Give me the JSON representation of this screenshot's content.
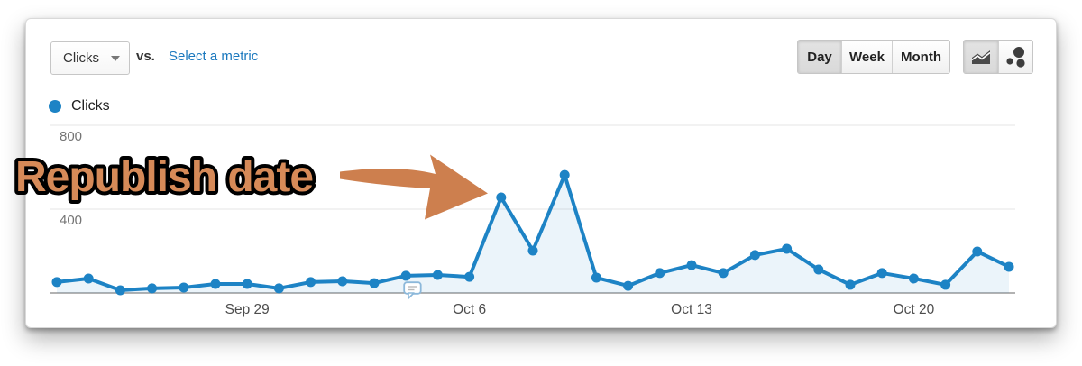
{
  "header": {
    "metric_selector": {
      "label": "Clicks"
    },
    "vs_label": "vs.",
    "select_metric_label": "Select a metric",
    "granularity": {
      "options": [
        "Day",
        "Week",
        "Month"
      ],
      "selected": "Day"
    },
    "chart_type": {
      "options": [
        "line-chart",
        "motion-chart"
      ],
      "selected": "line-chart"
    }
  },
  "legend": {
    "label": "Clicks",
    "color": "#1d83c5"
  },
  "annotation": {
    "text": "Republish date",
    "fill": "#d68a58",
    "outline": "#000000",
    "arrow_color": "#cd7f4e"
  },
  "axis_marker": {
    "icon": "speech-bubble-icon"
  },
  "colors": {
    "line": "#1d83c5",
    "link": "#1a78be",
    "axis": "#999999",
    "gridline": "#e6e6e6"
  },
  "chart_data": {
    "type": "area",
    "x": [
      "Sep 23",
      "Sep 24",
      "Sep 25",
      "Sep 26",
      "Sep 27",
      "Sep 28",
      "Sep 29",
      "Sep 30",
      "Oct 1",
      "Oct 2",
      "Oct 3",
      "Oct 4",
      "Oct 5",
      "Oct 6",
      "Oct 7",
      "Oct 8",
      "Oct 9",
      "Oct 10",
      "Oct 11",
      "Oct 12",
      "Oct 13",
      "Oct 14",
      "Oct 15",
      "Oct 16",
      "Oct 17",
      "Oct 18",
      "Oct 19",
      "Oct 20",
      "Oct 21",
      "Oct 22",
      "Oct 23"
    ],
    "series": [
      {
        "name": "Clicks",
        "color": "#1d83c5",
        "values": [
          52,
          69,
          13,
          22,
          26,
          43,
          43,
          22,
          52,
          56,
          47,
          82,
          86,
          77,
          456,
          202,
          563,
          73,
          34,
          95,
          133,
          95,
          181,
          211,
          112,
          39,
          95,
          69,
          39,
          198,
          125
        ]
      }
    ],
    "ylim": [
      0,
      800
    ],
    "y_ticks": [
      400,
      800
    ],
    "x_tick_labels": [
      "Sep 29",
      "Oct 6",
      "Oct 13",
      "Oct 20"
    ],
    "x_tick_indices": [
      6,
      13,
      20,
      27
    ],
    "grid": true,
    "legend_position": "top-left"
  }
}
